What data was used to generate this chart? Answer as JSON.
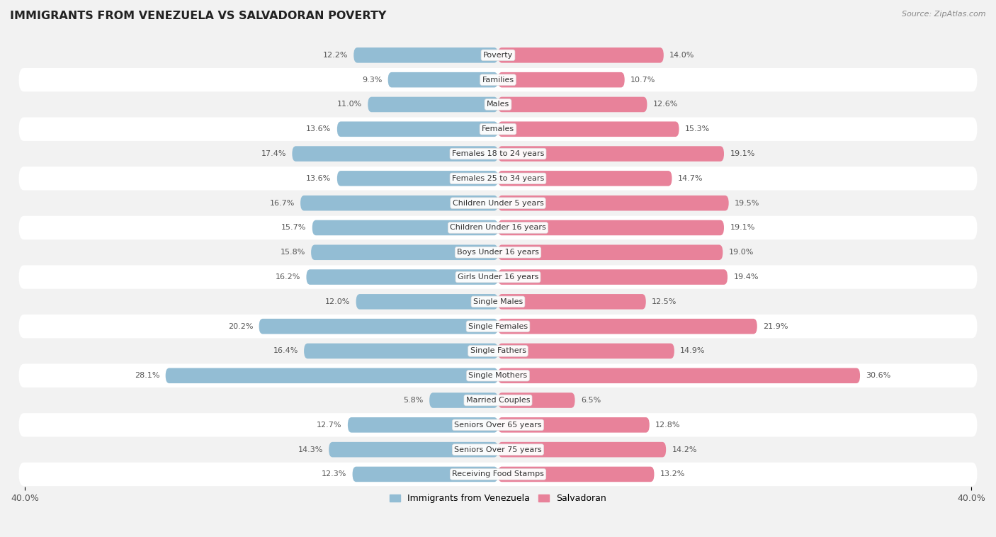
{
  "title": "IMMIGRANTS FROM VENEZUELA VS SALVADORAN POVERTY",
  "source": "Source: ZipAtlas.com",
  "categories": [
    "Poverty",
    "Families",
    "Males",
    "Females",
    "Females 18 to 24 years",
    "Females 25 to 34 years",
    "Children Under 5 years",
    "Children Under 16 years",
    "Boys Under 16 years",
    "Girls Under 16 years",
    "Single Males",
    "Single Females",
    "Single Fathers",
    "Single Mothers",
    "Married Couples",
    "Seniors Over 65 years",
    "Seniors Over 75 years",
    "Receiving Food Stamps"
  ],
  "venezuela_values": [
    12.2,
    9.3,
    11.0,
    13.6,
    17.4,
    13.6,
    16.7,
    15.7,
    15.8,
    16.2,
    12.0,
    20.2,
    16.4,
    28.1,
    5.8,
    12.7,
    14.3,
    12.3
  ],
  "salvadoran_values": [
    14.0,
    10.7,
    12.6,
    15.3,
    19.1,
    14.7,
    19.5,
    19.1,
    19.0,
    19.4,
    12.5,
    21.9,
    14.9,
    30.6,
    6.5,
    12.8,
    14.2,
    13.2
  ],
  "venezuela_color": "#93bdd4",
  "salvadoran_color": "#e8829a",
  "row_colors": [
    "#f2f2f2",
    "#ffffff"
  ],
  "axis_limit": 40.0,
  "bar_height": 0.62,
  "legend_label_venezuela": "Immigrants from Venezuela",
  "legend_label_salvadoran": "Salvadoran",
  "label_fontsize": 8.0,
  "cat_fontsize": 8.0,
  "title_fontsize": 11.5
}
